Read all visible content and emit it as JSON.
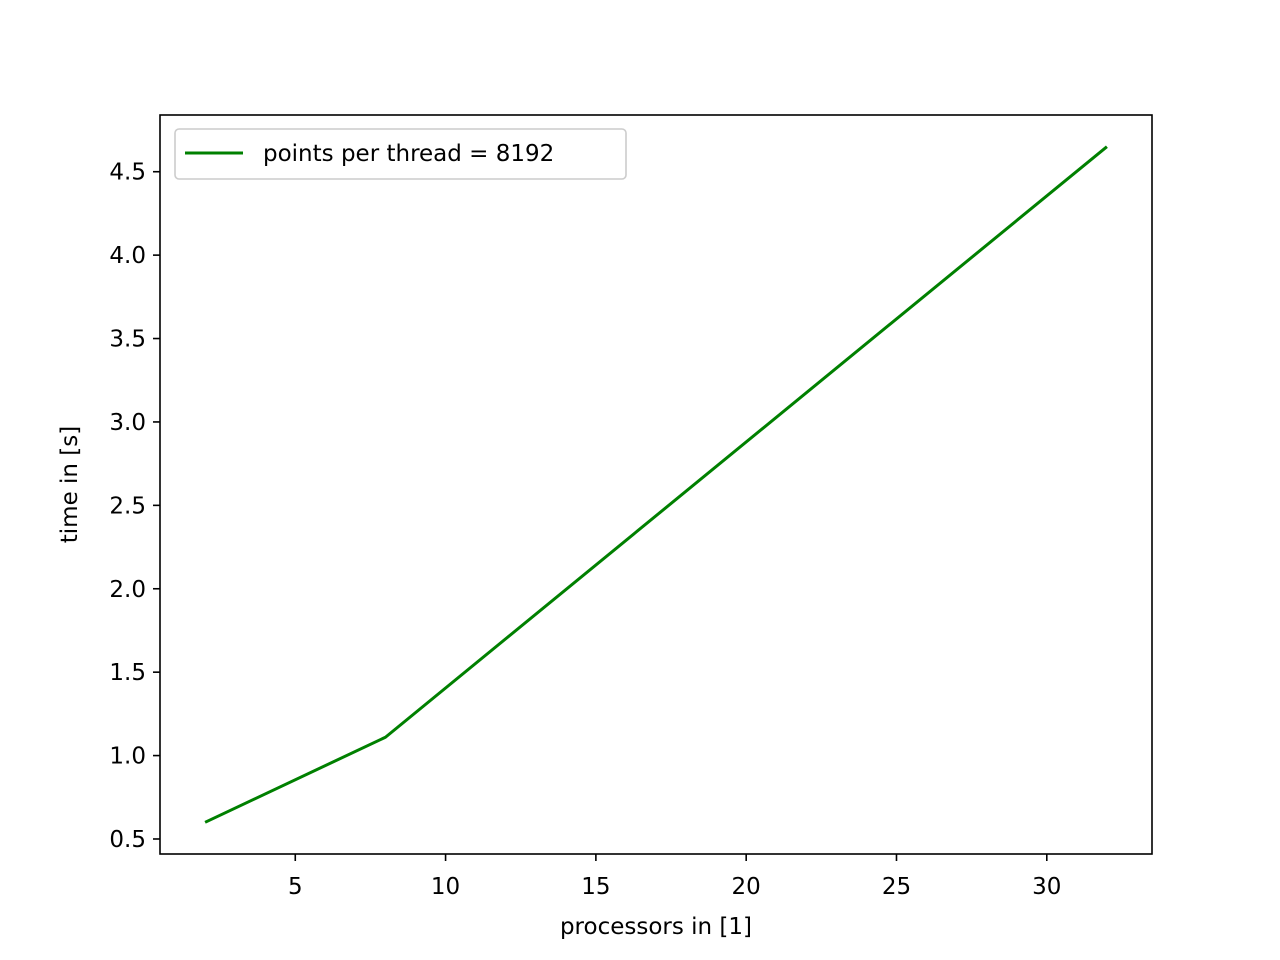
{
  "chart_data": {
    "type": "line",
    "title": "",
    "xlabel": "processors in [1]",
    "ylabel": "time in [s]",
    "xlim": [
      0.5,
      33.5
    ],
    "ylim": [
      0.41,
      4.84
    ],
    "xticks": [
      5,
      10,
      15,
      20,
      25,
      30
    ],
    "xtick_labels": [
      "5",
      "10",
      "15",
      "20",
      "25",
      "30"
    ],
    "yticks": [
      0.5,
      1.0,
      1.5,
      2.0,
      2.5,
      3.0,
      3.5,
      4.0,
      4.5
    ],
    "ytick_labels": [
      "0.5",
      "1.0",
      "1.5",
      "2.0",
      "2.5",
      "3.0",
      "3.5",
      "4.0",
      "4.5"
    ],
    "grid": false,
    "legend_position": "upper-left",
    "series": [
      {
        "name": "points per thread = 8192",
        "color": "#008000",
        "x": [
          2,
          8,
          32
        ],
        "y": [
          0.6,
          1.11,
          4.65
        ]
      }
    ]
  }
}
